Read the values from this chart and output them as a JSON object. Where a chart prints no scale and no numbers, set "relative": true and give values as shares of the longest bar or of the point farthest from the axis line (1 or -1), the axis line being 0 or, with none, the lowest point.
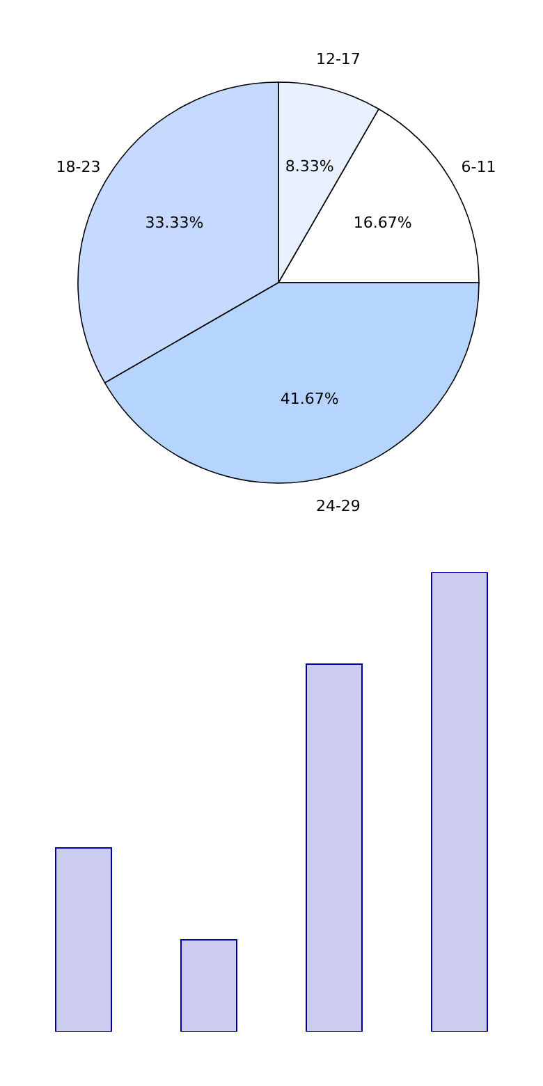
{
  "chart_data": [
    {
      "type": "pie",
      "categories": [
        "6-11",
        "12-17",
        "18-23",
        "24-29"
      ],
      "values": [
        16.67,
        8.33,
        33.33,
        41.67
      ],
      "colors": [
        "#ffffff",
        "#e8f0ff",
        "#c6d9ff",
        "#b5d5ff"
      ],
      "value_labels": [
        "16.67%",
        "8.33%",
        "33.33%",
        "41.67%"
      ]
    },
    {
      "type": "bar",
      "relative": true,
      "categories": [
        null,
        null,
        null,
        null
      ],
      "values": [
        0.4,
        0.2,
        0.8,
        1
      ],
      "color": "#ccccee"
    }
  ]
}
